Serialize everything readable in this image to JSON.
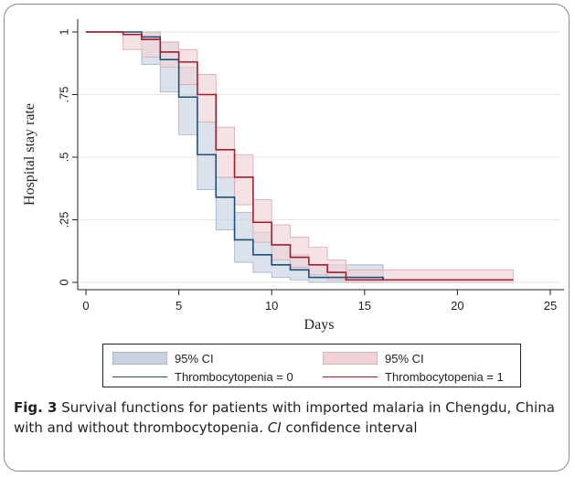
{
  "chart_data": {
    "type": "line",
    "ylabel": "Hospital stay rate",
    "xlabel": "Days",
    "xlim": [
      0,
      25
    ],
    "ylim": [
      0,
      1
    ],
    "x_ticks": [
      0,
      5,
      10,
      15,
      20,
      25
    ],
    "x_tick_labels": [
      "0",
      "5",
      "10",
      "15",
      "20",
      "25"
    ],
    "y_ticks": [
      0,
      0.25,
      0.5,
      0.75,
      1
    ],
    "y_tick_labels": [
      "0",
      ".25",
      ".5",
      ".75",
      "1"
    ],
    "grid": "horizontal",
    "legend": "bottom",
    "series": [
      {
        "name": "Thrombocytopenia = 0",
        "color": "#1f4e79",
        "x": [
          0,
          3,
          4,
          5,
          6,
          7,
          8,
          9,
          10,
          11,
          12,
          16
        ],
        "y": [
          1.0,
          0.98,
          0.89,
          0.74,
          0.51,
          0.34,
          0.17,
          0.11,
          0.07,
          0.05,
          0.02,
          0.02
        ],
        "x_end": 16,
        "y_end": 0.01,
        "ci_lower": [
          1.0,
          0.87,
          0.76,
          0.59,
          0.37,
          0.21,
          0.08,
          0.04,
          0.02,
          0.01,
          0.0,
          0.0
        ],
        "ci_upper": [
          1.0,
          1.0,
          0.96,
          0.86,
          0.64,
          0.42,
          0.28,
          0.2,
          0.15,
          0.11,
          0.07,
          0.07
        ],
        "ci_label": "95% CI",
        "ci_color": "#c9d3e2"
      },
      {
        "name": "Thrombocytopenia = 1",
        "color": "#a51d2d",
        "x": [
          0,
          2,
          3,
          4,
          5,
          6,
          7,
          8,
          9,
          10,
          11,
          12,
          13,
          14
        ],
        "y": [
          1.0,
          0.99,
          0.97,
          0.92,
          0.88,
          0.75,
          0.53,
          0.42,
          0.24,
          0.15,
          0.1,
          0.07,
          0.04,
          0.01
        ],
        "x_end": 23,
        "y_end": 0.01,
        "ci_lower": [
          1.0,
          0.93,
          0.9,
          0.86,
          0.79,
          0.64,
          0.42,
          0.31,
          0.16,
          0.09,
          0.06,
          0.03,
          0.01,
          0.0
        ],
        "ci_upper": [
          1.0,
          1.0,
          1.0,
          0.96,
          0.93,
          0.83,
          0.62,
          0.51,
          0.33,
          0.23,
          0.18,
          0.14,
          0.09,
          0.05
        ],
        "ci_label": "95% CI",
        "ci_color": "#efd3d6"
      }
    ]
  },
  "legend_labels": {
    "ci_0": "95% CI",
    "ci_1": "95% CI",
    "line_0": "Thrombocytopenia = 0",
    "line_1": "Thrombocytopenia = 1"
  },
  "caption": {
    "fig": "Fig. 3",
    "text1": "Survival functions for patients with imported malaria in Chengdu, China with and without thrombocytopenia. ",
    "ci": "CI",
    "text2": " confidence interval"
  }
}
